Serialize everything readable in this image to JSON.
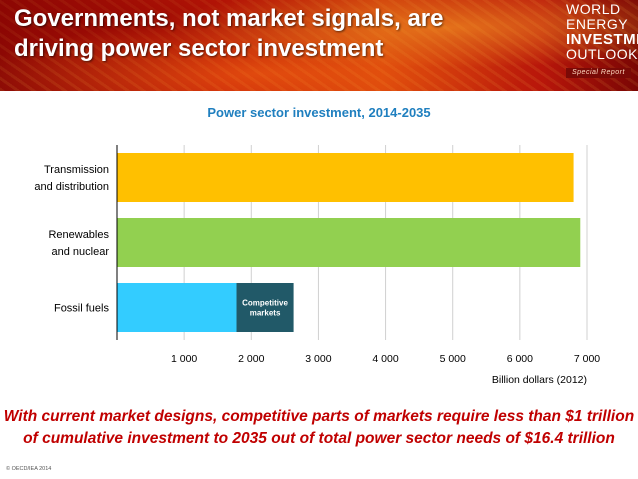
{
  "header": {
    "title_lines": [
      "Governments, not market signals, are",
      "driving power sector investment"
    ],
    "logo_lines": [
      "WORLD",
      "ENERGY",
      "INVESTMENT",
      "OUTLOOK"
    ],
    "logo_badge": "Special Report"
  },
  "chart_data": {
    "type": "bar",
    "orientation": "horizontal",
    "stacked": true,
    "title": "Power sector investment, 2014-2035",
    "xlabel": "Billion dollars (2012)",
    "xlim": [
      0,
      7000
    ],
    "xticks": [
      1000,
      2000,
      3000,
      4000,
      5000,
      6000,
      7000
    ],
    "xtick_labels": [
      "1 000",
      "2 000",
      "3 000",
      "4 000",
      "5 000",
      "6 000",
      "7 000"
    ],
    "grid": true,
    "categories": [
      {
        "label_lines": [
          "Transmission",
          "and distribution"
        ]
      },
      {
        "label_lines": [
          "Renewables",
          "and nuclear"
        ]
      },
      {
        "label_lines": [
          "Fossil fuels"
        ]
      }
    ],
    "bars": [
      {
        "category_index": 0,
        "start": 0,
        "value": 6800,
        "color": "#ffc000"
      },
      {
        "category_index": 1,
        "start": 0,
        "value": 6900,
        "color": "#92d050"
      },
      {
        "category_index": 2,
        "start": 0,
        "value": 1780,
        "color": "#33ccff"
      },
      {
        "category_index": 2,
        "start": 1780,
        "value": 850,
        "color": "#215968",
        "label_lines": [
          "Competitive",
          "markets"
        ]
      }
    ],
    "colors": {
      "title": "#1f7fbf",
      "axis": "#000000",
      "grid": "#d0d0d0"
    }
  },
  "caption": {
    "lines": [
      "With current market designs, competitive parts of markets require less than $1 trillion",
      "of cumulative investment to 2035 out of total power sector needs of $16.4 trillion"
    ]
  },
  "copyright": "© OECD/IEA 2014"
}
